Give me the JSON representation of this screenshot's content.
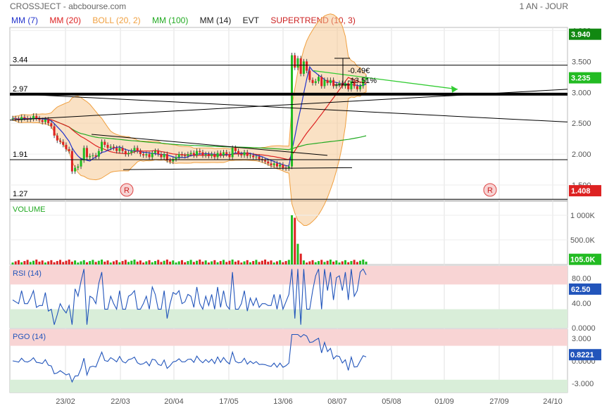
{
  "header": {
    "title": "CROSSJECT - abcbourse.com",
    "period": "1 AN - JOUR"
  },
  "legend": [
    {
      "label": "MM (7)",
      "color": "#2233cc"
    },
    {
      "label": "MM (20)",
      "color": "#dd2222"
    },
    {
      "label": "BOLL (20, 2)",
      "color": "#f0a040"
    },
    {
      "label": "MM (100)",
      "color": "#22aa22"
    },
    {
      "label": "MM (14)",
      "color": "#222222"
    },
    {
      "label": "EVT",
      "color": "#222222"
    },
    {
      "label": "SUPERTREND (10, 3)",
      "color": "#cc2222"
    }
  ],
  "colors": {
    "up": "#22bb22",
    "down": "#dd2222",
    "boll": "#f6c48a",
    "mm7": "#2233cc",
    "mm20": "#dd2222",
    "mm100": "#22aa22",
    "ind_line": "#2255bb",
    "arrow": "#33cc33"
  },
  "chart_data": [
    {
      "type": "candlestick",
      "title": "CROSSJECT",
      "x_tick_labels": [
        "23/02",
        "22/03",
        "20/04",
        "17/05",
        "13/06",
        "08/07",
        "05/08",
        "01/09",
        "27/09",
        "24/10"
      ],
      "y_ticks": [
        "1.500",
        "2.000",
        "2.500",
        "3.000",
        "3.500",
        "4.000"
      ],
      "ylim": [
        1.25,
        4.05
      ],
      "last_price": "3.235",
      "price_tags": [
        {
          "text": "3.940",
          "value": 3.94,
          "color": "#118811"
        },
        {
          "text": "3.235",
          "value": 3.235,
          "color": "#22bb22"
        },
        {
          "text": "1.408",
          "value": 1.408,
          "color": "#dd2222"
        }
      ],
      "levels": [
        {
          "label": "3.44",
          "value": 3.44
        },
        {
          "label": "2.97",
          "value": 2.97
        },
        {
          "label": "1.91",
          "value": 1.91
        },
        {
          "label": "1.27",
          "value": 1.27
        }
      ],
      "annotations": [
        "-0.49€",
        "-13.51%"
      ],
      "markers": [
        "R",
        "R"
      ],
      "close": [
        2.58,
        2.57,
        2.55,
        2.6,
        2.58,
        2.56,
        2.57,
        2.62,
        2.58,
        2.55,
        2.52,
        2.56,
        2.5,
        2.45,
        2.3,
        2.22,
        2.2,
        2.15,
        2.08,
        2.05,
        1.72,
        1.78,
        1.8,
        1.9,
        2.1,
        1.95,
        1.97,
        1.98,
        1.96,
        2.05,
        2.2,
        2.15,
        2.1,
        2.12,
        2.1,
        2.05,
        2.1,
        2.05,
        2.0,
        2.02,
        2.05,
        2.1,
        2.05,
        2.0,
        1.98,
        2.0,
        1.95,
        2.02,
        2.05,
        2.0,
        1.95,
        2.0,
        1.9,
        1.88,
        1.92,
        1.95,
        2.0,
        1.98,
        1.97,
        2.0,
        2.02,
        1.98,
        2.05,
        2.03,
        1.98,
        2.0,
        1.97,
        2.0,
        1.95,
        2.02,
        1.98,
        2.03,
        2.0,
        1.95,
        2.1,
        2.05,
        2.0,
        1.98,
        2.03,
        1.97,
        1.98,
        1.95,
        1.96,
        1.92,
        1.9,
        1.88,
        1.85,
        1.82,
        1.85,
        1.8,
        1.83,
        1.78,
        1.77,
        1.8,
        3.6,
        3.4,
        3.55,
        3.3,
        3.5,
        3.35,
        3.2,
        3.15,
        3.18,
        3.25,
        3.1,
        3.2,
        3.15,
        3.2,
        3.1,
        3.12,
        3.15,
        3.1,
        3.15,
        3.05,
        3.18,
        3.1,
        3.05,
        3.1,
        3.2,
        3.235
      ],
      "volume": {
        "y_ticks": [
          "500.0K",
          "1 000K"
        ],
        "last": "105.0K"
      },
      "rsi": {
        "name": "RSI (14)",
        "y_ticks": [
          "80.00",
          "40.00",
          "0.0000"
        ],
        "last": "62.50"
      },
      "pgo": {
        "name": "PGO (14)",
        "y_ticks": [
          "3.000",
          "0.0000",
          "-3.000"
        ],
        "last": "0.8221"
      }
    }
  ]
}
